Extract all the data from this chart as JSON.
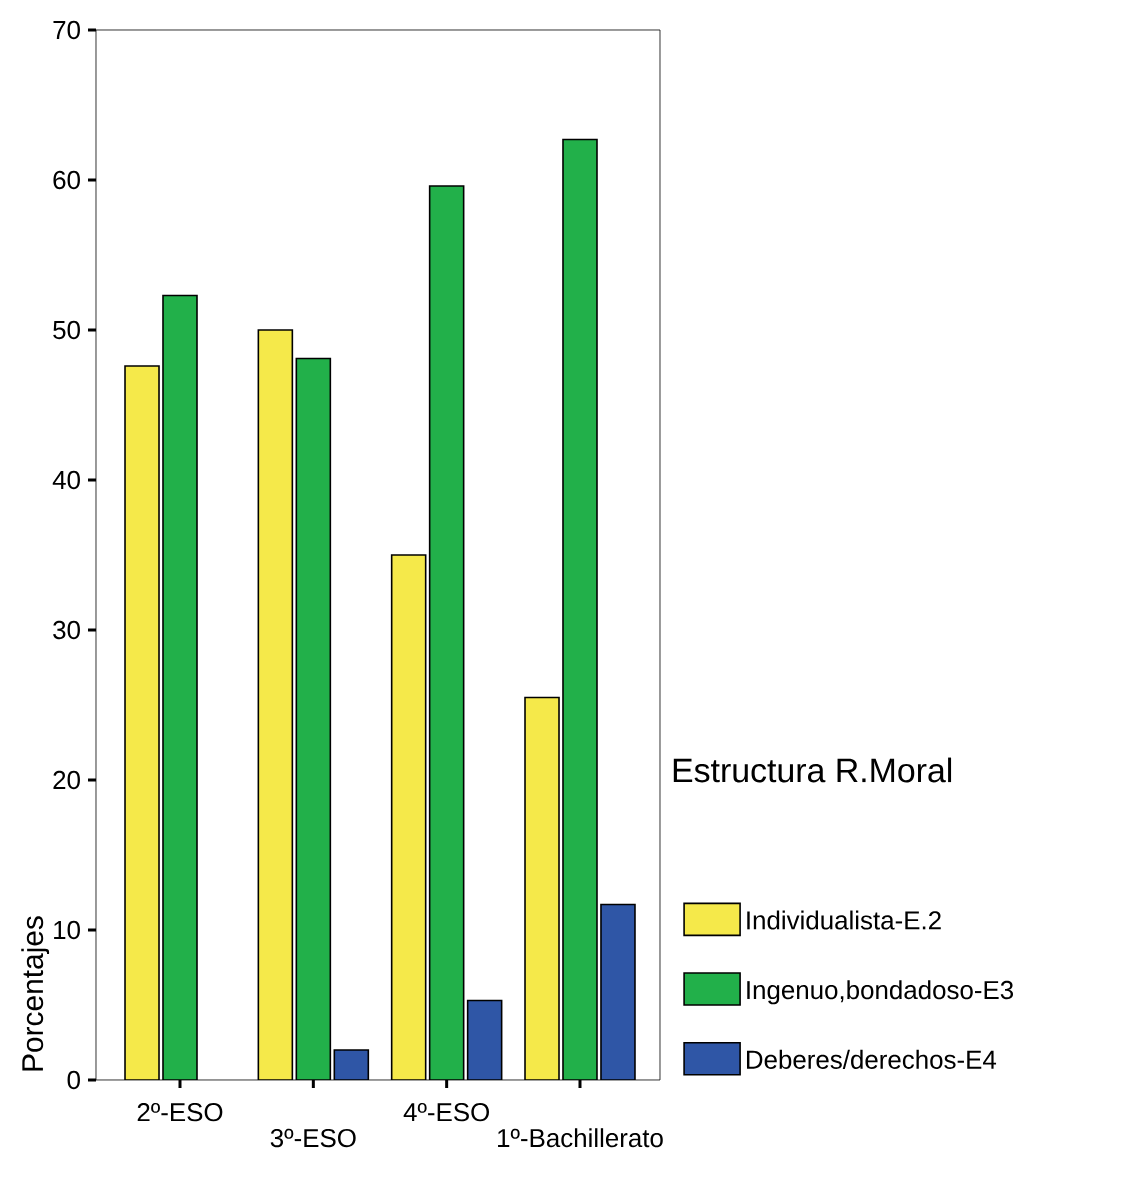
{
  "chart_data": {
    "type": "bar",
    "ylabel": "Porcentajes",
    "legend_title": "Estructura R.Moral",
    "legend": "right",
    "categories": [
      "2º-ESO",
      "3º-ESO",
      "4º-ESO",
      "1º-Bachillerato"
    ],
    "ylim": [
      0,
      70
    ],
    "yticks": [
      0,
      10,
      20,
      30,
      40,
      50,
      60,
      70
    ],
    "series": [
      {
        "name": "Individualista-E.2",
        "color": "#f5e94a",
        "values": [
          47.6,
          50.0,
          35.0,
          25.5
        ]
      },
      {
        "name": "Ingenuo,bondadoso-E3",
        "color": "#22b04a",
        "values": [
          52.3,
          48.1,
          59.6,
          62.7
        ]
      },
      {
        "name": "Deberes/derechos-E4",
        "color": "#2f56a6",
        "values": [
          null,
          2.0,
          5.3,
          11.7
        ]
      }
    ]
  }
}
